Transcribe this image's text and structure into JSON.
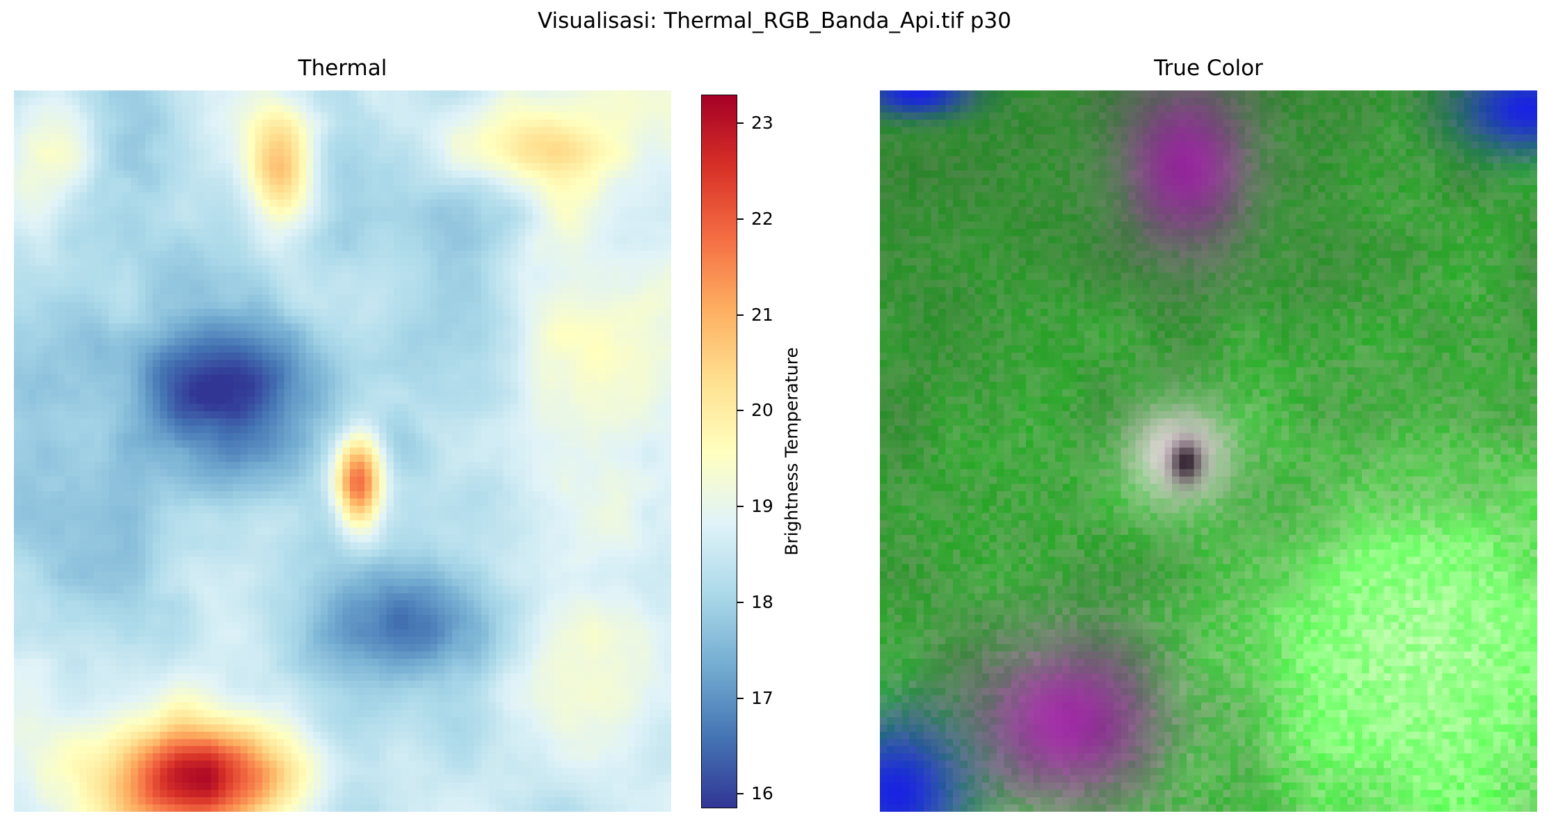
{
  "figure_title": "Visualisasi: Thermal_RGB_Banda_Api.tif p30",
  "chart_data": [
    {
      "type": "heatmap",
      "title": "Thermal",
      "colormap": "RdYlBu_r",
      "colorbar_label": "Brightness Temperature",
      "colorbar_range": [
        15.85,
        23.3
      ],
      "colorbar_ticks": [
        "16",
        "17",
        "18",
        "19",
        "20",
        "21",
        "22",
        "23"
      ],
      "colorbar_tick_values": [
        16,
        17,
        18,
        19,
        20,
        21,
        22,
        23
      ],
      "grid": false,
      "hotspots": [
        {
          "region": "center",
          "approx_value": 21.8
        },
        {
          "region": "bottom-left",
          "approx_value": 22.6
        },
        {
          "region": "top-center",
          "approx_value": 21.2
        }
      ]
    },
    {
      "type": "image",
      "title": "True Color",
      "grid": false,
      "colors": {
        "vegetation": "#3f8a3a",
        "bright-vegetation": "#8fe07a",
        "purple-area": "#7a2a86",
        "water": "#1020d8",
        "crater-white": "#f4e6f0"
      }
    }
  ]
}
